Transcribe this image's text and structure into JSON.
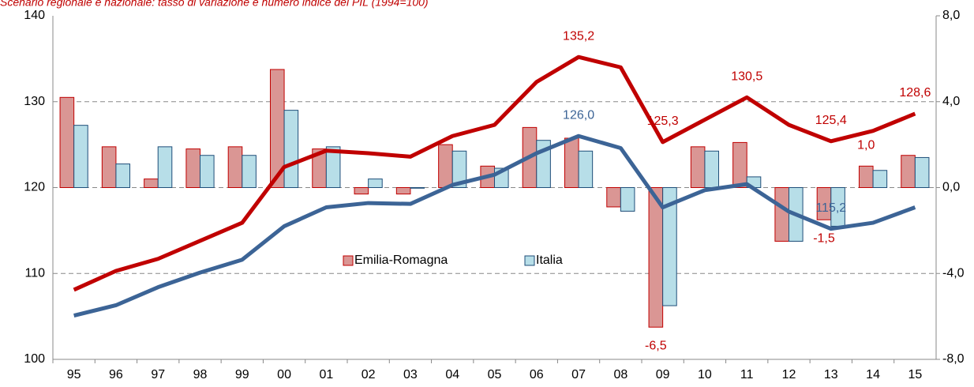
{
  "chart_data": {
    "type": "combo",
    "title": "Scenario regionale e nazionale: tasso di variazione e numero indice del PIL (1994=100)",
    "categories": [
      "95",
      "96",
      "97",
      "98",
      "99",
      "00",
      "01",
      "02",
      "03",
      "04",
      "05",
      "06",
      "07",
      "08",
      "09",
      "10",
      "11",
      "12",
      "13",
      "14",
      "15"
    ],
    "ylim": [
      100,
      140
    ],
    "yticks": [
      100,
      110,
      120,
      130,
      140
    ],
    "y2lim": [
      -8,
      8
    ],
    "y2ticks": [
      {
        "value": -8,
        "label": "-8,0"
      },
      {
        "value": -4,
        "label": "-4,0"
      },
      {
        "value": 0,
        "label": "0,0"
      },
      {
        "value": 4,
        "label": "4,0"
      },
      {
        "value": 8,
        "label": "8,0"
      }
    ],
    "grid": true,
    "legend": "center",
    "series": [
      {
        "name": "Emilia-Romagna",
        "type": "bar",
        "axis": "y2",
        "color": "#da9694",
        "edge": "#c00000",
        "values": [
          4.2,
          1.9,
          0.4,
          1.8,
          1.9,
          5.5,
          1.8,
          -0.3,
          -0.3,
          2.0,
          1.0,
          2.8,
          2.3,
          -0.9,
          -6.5,
          1.9,
          2.1,
          -2.5,
          -1.5,
          1.0,
          1.5
        ],
        "value_labels": [
          null,
          null,
          null,
          null,
          null,
          null,
          null,
          null,
          null,
          null,
          null,
          null,
          null,
          null,
          "-6,5",
          null,
          null,
          null,
          "-1,5",
          "1,0",
          null
        ]
      },
      {
        "name": "Italia",
        "type": "bar",
        "axis": "y2",
        "color": "#b7dee8",
        "edge": "#1f4e79",
        "values": [
          2.9,
          1.1,
          1.9,
          1.5,
          1.5,
          3.6,
          1.9,
          0.4,
          0.0,
          1.7,
          0.9,
          2.2,
          1.7,
          -1.1,
          -5.5,
          1.7,
          0.5,
          -2.5,
          -1.8,
          0.8,
          1.4
        ]
      },
      {
        "type": "line",
        "axis": "y",
        "color": "#c00000",
        "values": [
          108.1,
          110.3,
          111.7,
          113.8,
          115.9,
          122.4,
          124.3,
          124.0,
          123.6,
          126.0,
          127.3,
          132.3,
          135.2,
          134.0,
          125.3,
          127.9,
          130.5,
          127.3,
          125.4,
          126.6,
          128.6
        ],
        "value_labels": [
          null,
          null,
          null,
          null,
          null,
          null,
          null,
          null,
          null,
          null,
          null,
          null,
          "135,2",
          null,
          "125,3",
          null,
          "130,5",
          null,
          "125,4",
          null,
          "128,6"
        ]
      },
      {
        "type": "line",
        "axis": "y",
        "color": "#3c6496",
        "values": [
          105.1,
          106.3,
          108.4,
          110.1,
          111.6,
          115.5,
          117.7,
          118.2,
          118.1,
          120.3,
          121.5,
          124.0,
          126.0,
          124.6,
          117.7,
          119.7,
          120.4,
          117.2,
          115.2,
          115.9,
          117.7
        ],
        "value_labels": [
          null,
          null,
          null,
          null,
          null,
          null,
          null,
          null,
          null,
          null,
          null,
          null,
          "126,0",
          null,
          null,
          null,
          null,
          null,
          "115,2",
          null,
          null
        ]
      }
    ]
  }
}
